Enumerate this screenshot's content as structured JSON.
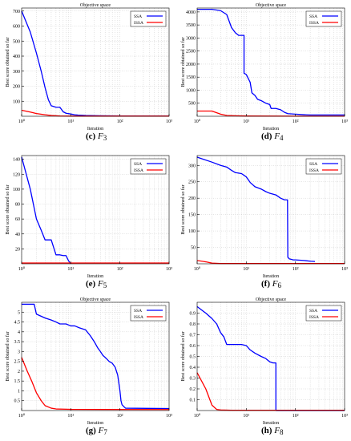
{
  "chart_data": [
    {
      "type": "line",
      "panel_label": "(c)",
      "function_name": "F",
      "function_index": "3",
      "title": "Objective space",
      "xlabel": "Iteration",
      "ylabel": "Best score obtained so far",
      "xscale": "log",
      "xlim": [
        1,
        1000
      ],
      "ylim": [
        0,
        720
      ],
      "xtick_labels": [
        "10⁰",
        "10¹",
        "10²",
        "10³"
      ],
      "yticks": [
        100,
        200,
        300,
        400,
        500,
        600,
        700
      ],
      "grid": true,
      "legend_position": "top-right",
      "series": [
        {
          "name": "SSA",
          "color": "#0000ff",
          "x": [
            1,
            1.5,
            2,
            2.5,
            3,
            3.5,
            4,
            5,
            6,
            7,
            8,
            10,
            12,
            14,
            20,
            40,
            100,
            1000
          ],
          "y": [
            700,
            560,
            420,
            300,
            190,
            110,
            70,
            60,
            60,
            30,
            20,
            15,
            10,
            8,
            5,
            3,
            2,
            1
          ]
        },
        {
          "name": "ISSA",
          "color": "#ff0000",
          "x": [
            1,
            1.5,
            2,
            3,
            4,
            6,
            10,
            100,
            1000
          ],
          "y": [
            40,
            28,
            18,
            10,
            5,
            2,
            1,
            1,
            1
          ]
        }
      ]
    },
    {
      "type": "line",
      "panel_label": "(d)",
      "function_name": "F",
      "function_index": "4",
      "title": "Objective space",
      "xlabel": "Iteration",
      "ylabel": "Best score obtained so far",
      "xscale": "log",
      "xlim": [
        1,
        1000
      ],
      "ylim": [
        0,
        4150
      ],
      "xtick_labels": [
        "10⁰",
        "10¹",
        "10²",
        "10³"
      ],
      "yticks": [
        500,
        1000,
        1500,
        2000,
        2500,
        3000,
        3500,
        4000
      ],
      "grid": true,
      "legend_position": "top-right",
      "series": [
        {
          "name": "SSA",
          "color": "#0000ff",
          "x": [
            1,
            2,
            3,
            4,
            5,
            6,
            7,
            8,
            9,
            9,
            10,
            12,
            13,
            15,
            17,
            20,
            25,
            30,
            32,
            40,
            50,
            60,
            70,
            100,
            150,
            200,
            1000
          ],
          "y": [
            4100,
            4100,
            4050,
            3900,
            3400,
            3200,
            3100,
            3100,
            3100,
            1650,
            1600,
            1300,
            900,
            800,
            650,
            600,
            500,
            450,
            300,
            300,
            250,
            150,
            100,
            80,
            60,
            50,
            50
          ]
        },
        {
          "name": "ISSA",
          "color": "#ff0000",
          "x": [
            1,
            2,
            3,
            4,
            6,
            10,
            100,
            1000
          ],
          "y": [
            200,
            200,
            80,
            30,
            20,
            10,
            5,
            5
          ]
        }
      ]
    },
    {
      "type": "line",
      "panel_label": "(e)",
      "function_name": "F",
      "function_index": "5",
      "title": "",
      "xlabel": "Iteration",
      "ylabel": "Best score obtained so far",
      "xscale": "log",
      "xlim": [
        1,
        1000
      ],
      "ylim": [
        0,
        145
      ],
      "xtick_labels": [
        "10⁰",
        "10¹",
        "10²",
        "10³"
      ],
      "yticks": [
        20,
        40,
        60,
        80,
        100,
        120,
        140
      ],
      "grid": true,
      "legend_position": "top-right",
      "series": [
        {
          "name": "SSA",
          "color": "#0000ff",
          "x": [
            1,
            1.5,
            2,
            2.5,
            3,
            4,
            5,
            6,
            7,
            8,
            9,
            10
          ],
          "y": [
            143,
            100,
            60,
            45,
            32,
            32,
            12,
            12,
            11,
            11,
            4,
            0
          ]
        },
        {
          "name": "ISSA",
          "color": "#ff0000",
          "x": [
            1,
            1000
          ],
          "y": [
            1,
            1
          ]
        }
      ]
    },
    {
      "type": "line",
      "panel_label": "(f)",
      "function_name": "F",
      "function_index": "6",
      "title": "",
      "xlabel": "Iteration",
      "ylabel": "Best score obtained so far",
      "xscale": "log",
      "xlim": [
        1,
        1000
      ],
      "ylim": [
        0,
        330
      ],
      "xtick_labels": [
        "10⁰",
        "10¹",
        "10²",
        "10³"
      ],
      "yticks": [
        50,
        100,
        150,
        200,
        250,
        300
      ],
      "grid": true,
      "legend_position": "top-right",
      "series": [
        {
          "name": "SSA",
          "color": "#0000ff",
          "x": [
            1,
            2,
            3,
            4,
            5,
            6,
            8,
            10,
            12,
            15,
            20,
            25,
            30,
            40,
            50,
            60,
            69,
            70,
            75,
            80,
            90,
            100,
            150,
            200,
            250
          ],
          "y": [
            325,
            310,
            300,
            295,
            285,
            278,
            275,
            265,
            248,
            235,
            228,
            220,
            215,
            210,
            200,
            195,
            195,
            20,
            15,
            14,
            12,
            12,
            10,
            8,
            7
          ]
        },
        {
          "name": "ISSA",
          "color": "#ff0000",
          "x": [
            1,
            1.5,
            2,
            3,
            1000
          ],
          "y": [
            10,
            6,
            2,
            1,
            1
          ]
        }
      ]
    },
    {
      "type": "line",
      "panel_label": "(g)",
      "function_name": "F",
      "function_index": "7",
      "title": "Objective space",
      "xlabel": "Iteration",
      "ylabel": "Best score obtained so far",
      "xscale": "log",
      "xlim": [
        1,
        1000
      ],
      "ylim": [
        0,
        5.5
      ],
      "xtick_labels": [
        "10⁰",
        "10¹",
        "10²",
        "10³"
      ],
      "yticks": [
        0.5,
        1,
        1.5,
        2,
        2.5,
        3,
        3.5,
        4,
        4.5,
        5
      ],
      "grid": true,
      "legend_position": "top-right",
      "series": [
        {
          "name": "SSA",
          "color": "#0000ff",
          "x": [
            1,
            1.5,
            1.8,
            2,
            3,
            4,
            5,
            6,
            8,
            10,
            12,
            15,
            20,
            25,
            30,
            35,
            40,
            45,
            50,
            55,
            60,
            70,
            80,
            90,
            95,
            100,
            105,
            110,
            120,
            130,
            1000
          ],
          "y": [
            5.4,
            5.4,
            5.4,
            4.9,
            4.7,
            4.6,
            4.5,
            4.4,
            4.4,
            4.3,
            4.3,
            4.2,
            4.1,
            3.8,
            3.5,
            3.2,
            3.0,
            2.8,
            2.7,
            2.6,
            2.5,
            2.4,
            2.2,
            1.8,
            1.4,
            1.0,
            0.5,
            0.3,
            0.2,
            0.12,
            0.1
          ]
        },
        {
          "name": "ISSA",
          "color": "#ff0000",
          "x": [
            1,
            1.3,
            1.6,
            2,
            2.5,
            3,
            4,
            5,
            10,
            1000
          ],
          "y": [
            2.7,
            2.0,
            1.5,
            0.9,
            0.5,
            0.25,
            0.12,
            0.08,
            0.06,
            0.05
          ]
        }
      ]
    },
    {
      "type": "line",
      "panel_label": "(h)",
      "function_name": "F",
      "function_index": "8",
      "title": "Objective space",
      "xlabel": "Iteration",
      "ylabel": "Best score obtained so far",
      "xscale": "log",
      "xlim": [
        1,
        1000
      ],
      "ylim": [
        0,
        1.0
      ],
      "xtick_labels": [
        "10⁰",
        "10¹",
        "10²",
        "10³"
      ],
      "yticks": [
        0.1,
        0.2,
        0.3,
        0.4,
        0.5,
        0.6,
        0.7,
        0.8,
        0.9
      ],
      "grid": true,
      "legend_position": "top-right",
      "series": [
        {
          "name": "SSA",
          "color": "#0000ff",
          "x": [
            1,
            1.5,
            2,
            2.5,
            3,
            3.5,
            4,
            5,
            6,
            8,
            10,
            12,
            15,
            20,
            25,
            30,
            35,
            40,
            40,
            1000
          ],
          "y": [
            0.96,
            0.9,
            0.85,
            0.8,
            0.72,
            0.68,
            0.61,
            0.61,
            0.61,
            0.61,
            0.6,
            0.56,
            0.53,
            0.5,
            0.48,
            0.45,
            0.44,
            0.44,
            0,
            0
          ]
        },
        {
          "name": "ISSA",
          "color": "#ff0000",
          "x": [
            1,
            1.5,
            2,
            2.5,
            3,
            5,
            1000
          ],
          "y": [
            0.35,
            0.2,
            0.05,
            0.01,
            0.005,
            0.003,
            0.003
          ]
        }
      ]
    }
  ]
}
